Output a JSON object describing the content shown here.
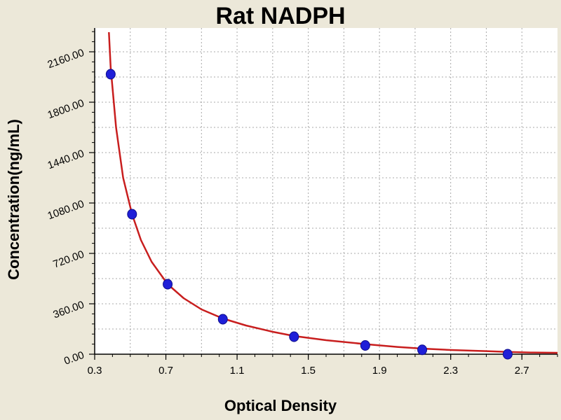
{
  "colors": {
    "background": "#ece8d9",
    "plot_background": "#ffffff",
    "grid": "#a8a8a8",
    "curve": "#c81e1e",
    "points": "#1f1fd8"
  },
  "chart_data": {
    "type": "scatter",
    "title": "Rat NADPH",
    "xlabel": "Optical Density",
    "ylabel": "Concentration(ng/mL)",
    "xlim": [
      0.3,
      2.9
    ],
    "ylim": [
      0,
      2330
    ],
    "grid": true,
    "x_ticks": [
      0.3,
      0.7,
      1.1,
      1.5,
      1.9,
      2.3,
      2.7
    ],
    "x_tick_labels": [
      "0.3",
      "0.7",
      "1.1",
      "1.5",
      "1.9",
      "2.3",
      "2.7"
    ],
    "y_ticks": [
      0,
      360,
      720,
      1080,
      1440,
      1800,
      2160
    ],
    "y_tick_labels": [
      "0.00",
      "360.00",
      "720.00",
      "1080.00",
      "1440.00",
      "1800.00",
      "2160.00"
    ],
    "series": [
      {
        "type": "scatter",
        "x": [
          0.39,
          0.51,
          0.71,
          1.02,
          1.42,
          1.82,
          2.14,
          2.62
        ],
        "y": [
          2000,
          1000,
          500,
          250,
          125,
          62.5,
          31.2,
          0
        ]
      },
      {
        "type": "line",
        "x": [
          0.38,
          0.39,
          0.42,
          0.46,
          0.51,
          0.56,
          0.62,
          0.71,
          0.8,
          0.9,
          1.02,
          1.15,
          1.3,
          1.42,
          1.6,
          1.82,
          2.0,
          2.14,
          2.3,
          2.5,
          2.62,
          2.75,
          2.9
        ],
        "y": [
          2300,
          2050,
          1620,
          1260,
          1000,
          815,
          660,
          500,
          400,
          320,
          255,
          205,
          160,
          130,
          100,
          72,
          52,
          40,
          30,
          22,
          16,
          12,
          10
        ]
      }
    ]
  }
}
